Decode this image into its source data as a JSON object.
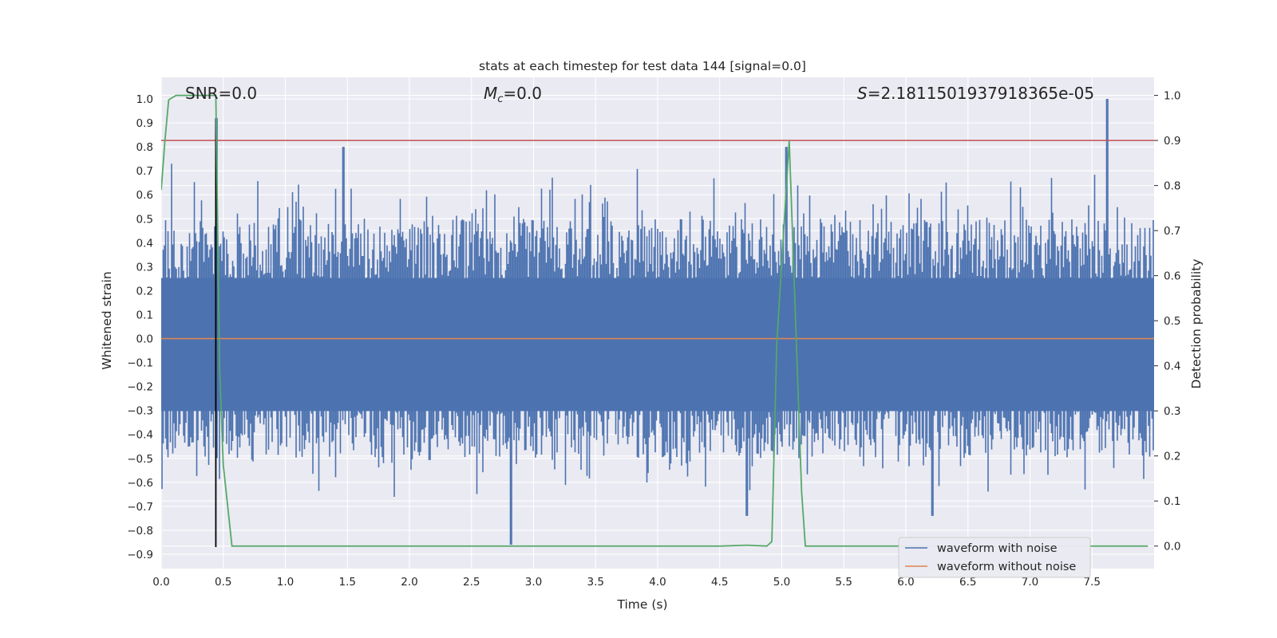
{
  "chart_data": {
    "type": "line",
    "title": "stats at each timestep for test data 144 [signal=0.0]",
    "xlabel": "Time (s)",
    "ylabel": "Whitened strain",
    "y2label": "Detection probability",
    "xlim": [
      0.0,
      8.0
    ],
    "ylim": [
      -0.96,
      1.09
    ],
    "y2lim": [
      -0.05,
      1.04
    ],
    "x_ticks": [
      "0.0",
      "0.5",
      "1.0",
      "1.5",
      "2.0",
      "2.5",
      "3.0",
      "3.5",
      "4.0",
      "4.5",
      "5.0",
      "5.5",
      "6.0",
      "6.5",
      "7.0",
      "7.5"
    ],
    "y_ticks": [
      "1.0",
      "0.9",
      "0.8",
      "0.7",
      "0.6",
      "0.5",
      "0.4",
      "0.3",
      "0.2",
      "0.1",
      "0.0",
      "−0.1",
      "−0.2",
      "−0.3",
      "−0.4",
      "−0.5",
      "−0.6",
      "−0.7",
      "−0.8",
      "−0.9"
    ],
    "y2_ticks": [
      "1.0",
      "0.9",
      "0.8",
      "0.7",
      "0.6",
      "0.5",
      "0.4",
      "0.3",
      "0.2",
      "0.1",
      "0.0"
    ],
    "grid": true,
    "legend_position": "lower-right",
    "annotations": {
      "snr": "SNR=0.0",
      "mc_symbol": "M",
      "mc_sub": "c",
      "mc_value": "=0.0",
      "s_symbol": "S",
      "s_value": "=2.1811501937918365e-05"
    },
    "series": [
      {
        "name": "waveform with noise",
        "color": "#4c72b0",
        "style": "dense noise trace",
        "envelope_typical": [
          -0.5,
          0.5
        ],
        "spikes": [
          {
            "x": 0.45,
            "y": 0.92
          },
          {
            "x": 1.47,
            "y": 0.8
          },
          {
            "x": 2.82,
            "y": -0.86
          },
          {
            "x": 4.72,
            "y": -0.74
          },
          {
            "x": 5.04,
            "y": 0.8
          },
          {
            "x": 6.22,
            "y": -0.74
          },
          {
            "x": 7.62,
            "y": 1.0
          }
        ]
      },
      {
        "name": "waveform without noise",
        "color": "#dd8452",
        "x": [
          0.0,
          8.0
        ],
        "y": [
          0.0,
          0.0
        ]
      }
    ],
    "detection_probability": {
      "color": "#55a868",
      "axis": "right",
      "x": [
        0.0,
        0.03,
        0.06,
        0.12,
        0.2,
        0.3,
        0.4,
        0.44,
        0.47,
        0.5,
        0.57,
        0.7,
        1.0,
        2.0,
        3.0,
        4.0,
        4.5,
        4.72,
        4.88,
        4.92,
        4.96,
        5.06,
        5.16,
        5.19,
        5.4,
        6.0,
        7.0,
        7.95
      ],
      "y": [
        0.79,
        0.9,
        0.99,
        1.0,
        1.0,
        1.0,
        1.0,
        1.0,
        0.4,
        0.18,
        0.0,
        0.0,
        0.0,
        0.0,
        0.0,
        0.0,
        0.0,
        0.002,
        0.0,
        0.01,
        0.45,
        0.9,
        0.12,
        0.0,
        0.0,
        0.0,
        0.0,
        0.0
      ]
    },
    "threshold": {
      "axis": "right",
      "value": 0.9,
      "color": "#c44e52"
    },
    "marker_line": {
      "x": 0.44,
      "y_top": 0.92,
      "y_bottom": -0.87,
      "color": "#000000"
    }
  }
}
